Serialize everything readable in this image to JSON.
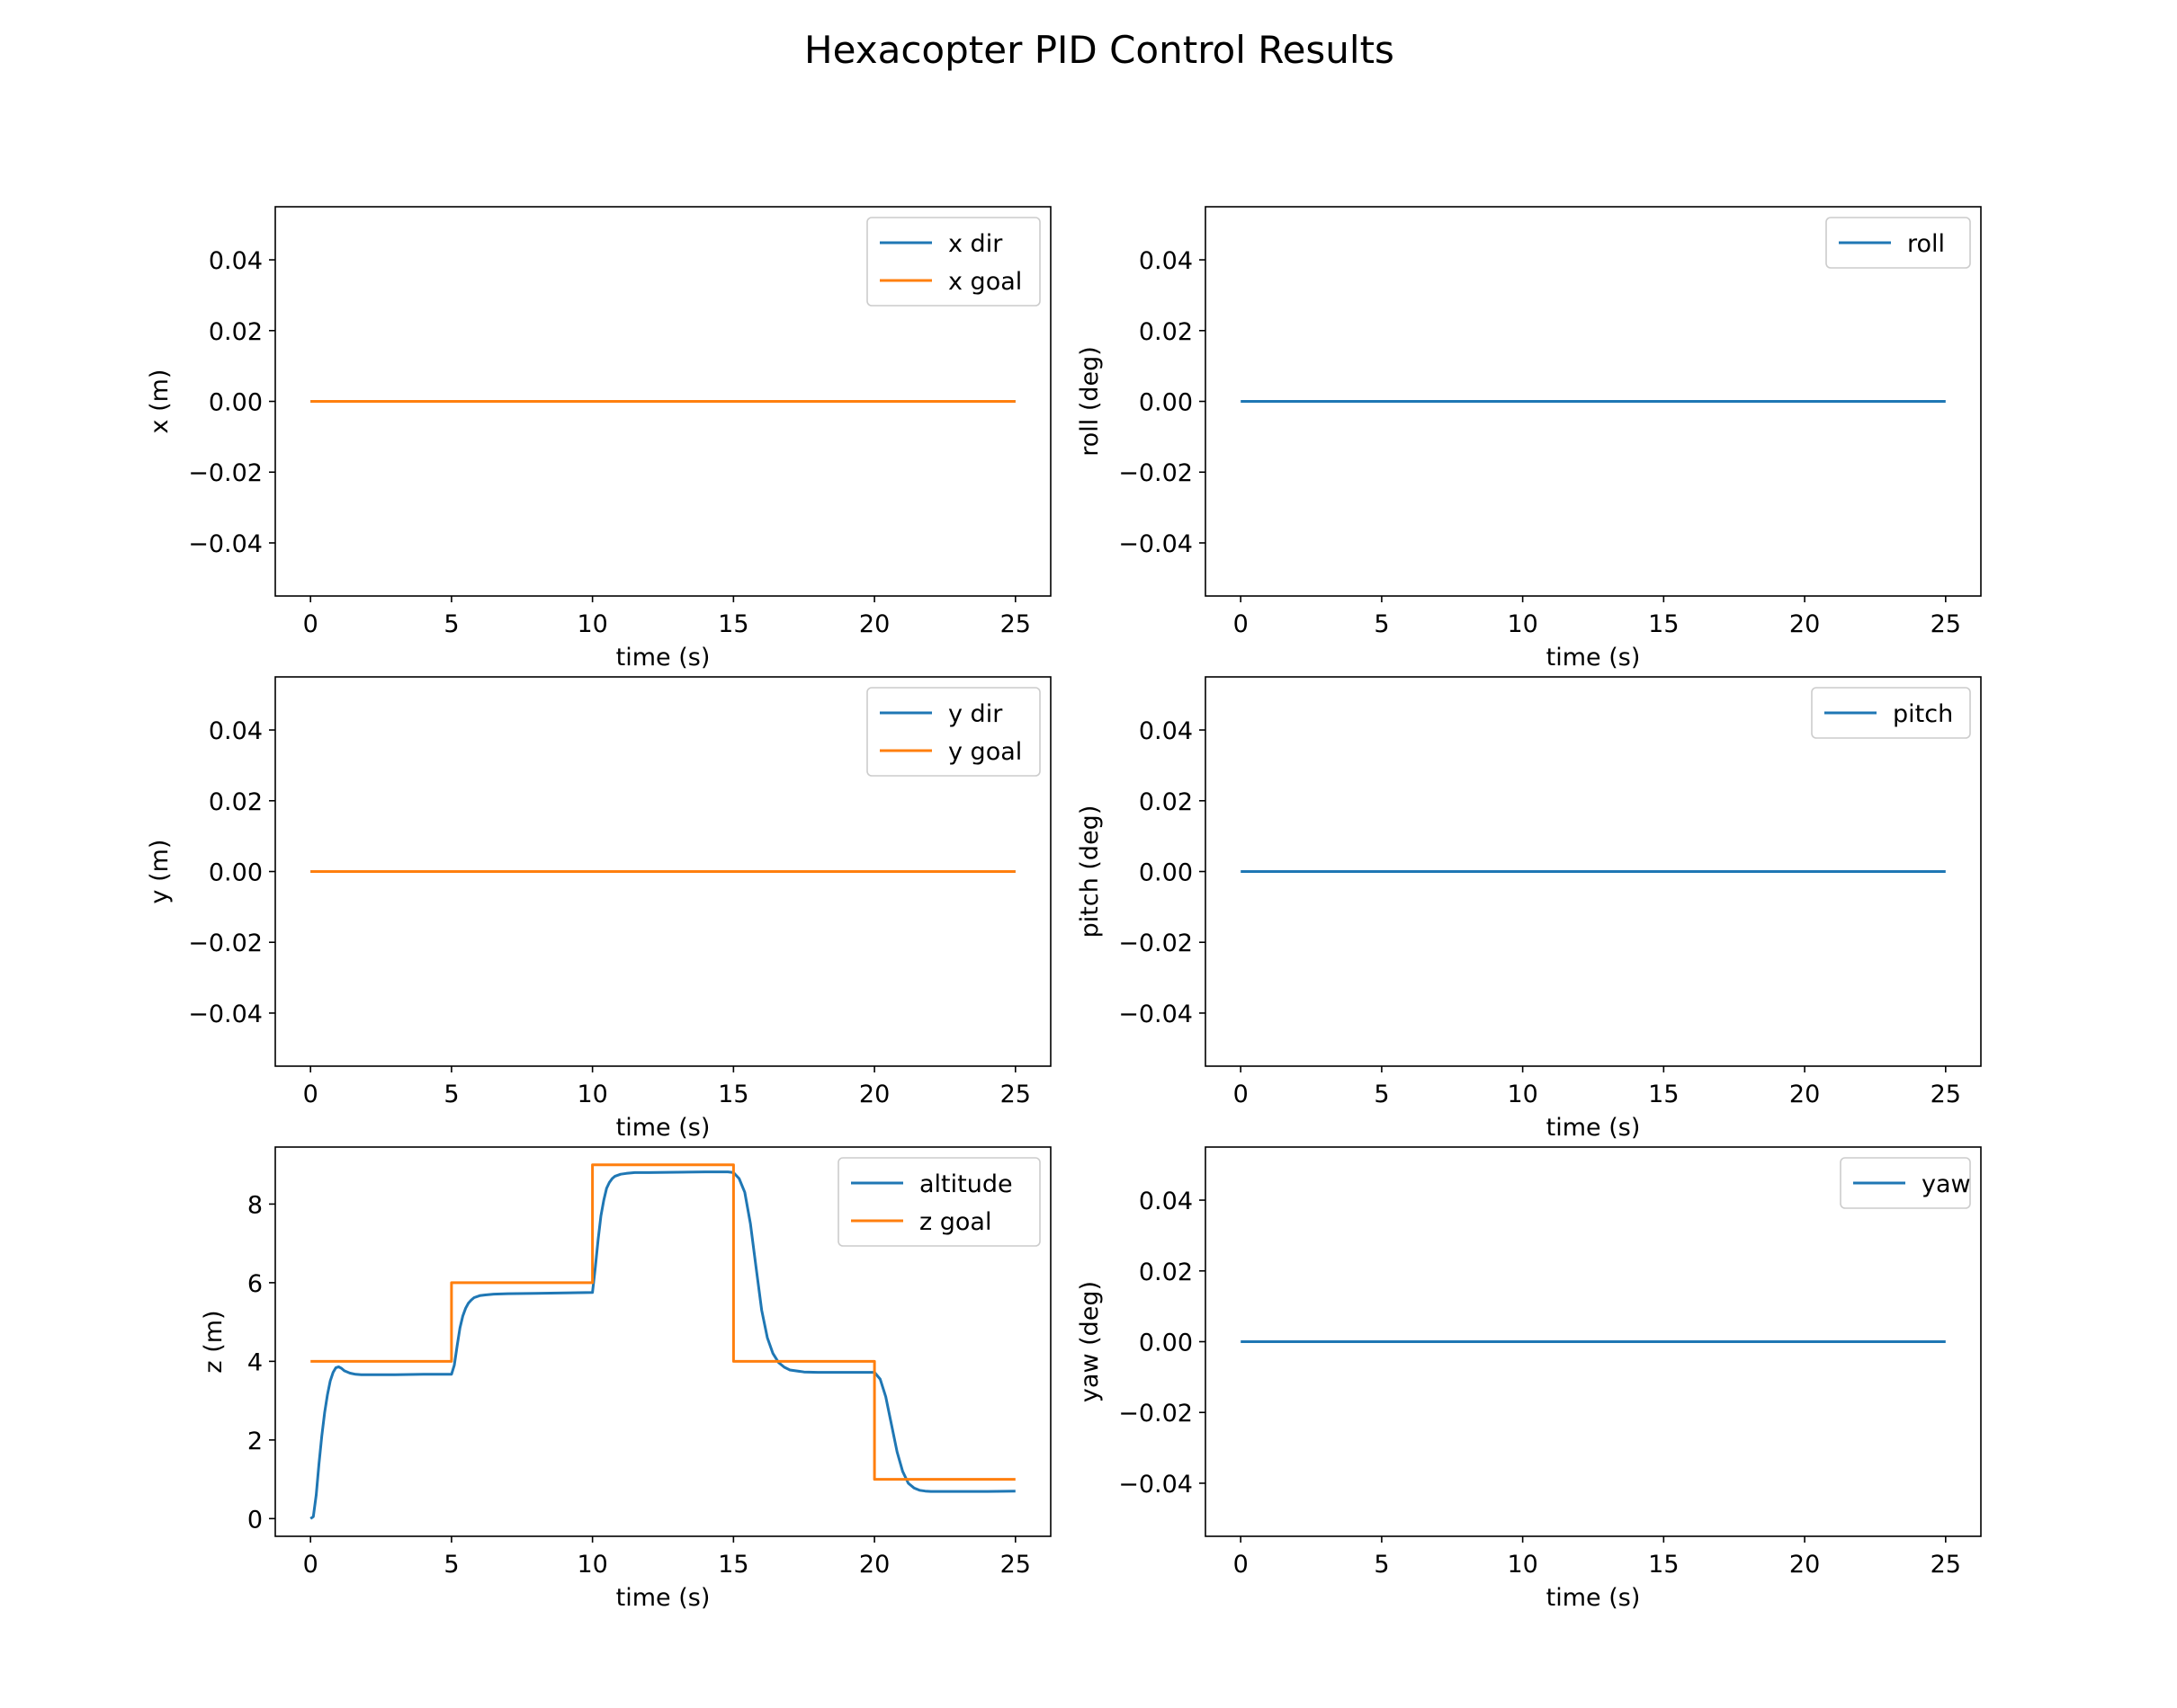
{
  "figure": {
    "title": "Hexacopter PID Control Results"
  },
  "colors": {
    "series_blue": "#1f77b4",
    "series_orange": "#ff7f0e",
    "axes": "#000000",
    "legend_border": "#cccccc"
  },
  "chart_data": [
    {
      "type": "line",
      "panel": "top-left",
      "xlabel": "time (s)",
      "ylabel": "x (m)",
      "xlim": [
        -1.25,
        26.25
      ],
      "ylim": [
        -0.055,
        0.055
      ],
      "xticks": [
        0,
        5,
        10,
        15,
        20,
        25
      ],
      "xtick_labels": [
        "0",
        "5",
        "10",
        "15",
        "20",
        "25"
      ],
      "yticks": [
        0.04,
        0.02,
        0.0,
        -0.02,
        -0.04
      ],
      "ytick_labels": [
        "0.04",
        "0.02",
        "0.00",
        "−0.02",
        "−0.04"
      ],
      "legend": "top-right",
      "series": [
        {
          "name": "x dir",
          "color": "#1f77b4",
          "x": [
            0,
            25
          ],
          "y": [
            0,
            0
          ]
        },
        {
          "name": "x goal",
          "color": "#ff7f0e",
          "x": [
            0,
            25
          ],
          "y": [
            0,
            0
          ]
        }
      ]
    },
    {
      "type": "line",
      "panel": "top-right",
      "xlabel": "time (s)",
      "ylabel": "roll (deg)",
      "xlim": [
        -1.25,
        26.25
      ],
      "ylim": [
        -0.055,
        0.055
      ],
      "xticks": [
        0,
        5,
        10,
        15,
        20,
        25
      ],
      "xtick_labels": [
        "0",
        "5",
        "10",
        "15",
        "20",
        "25"
      ],
      "yticks": [
        0.04,
        0.02,
        0.0,
        -0.02,
        -0.04
      ],
      "ytick_labels": [
        "0.04",
        "0.02",
        "0.00",
        "−0.02",
        "−0.04"
      ],
      "legend": "top-right",
      "series": [
        {
          "name": "roll",
          "color": "#1f77b4",
          "x": [
            0,
            25
          ],
          "y": [
            0,
            0
          ]
        }
      ]
    },
    {
      "type": "line",
      "panel": "middle-left",
      "xlabel": "time (s)",
      "ylabel": "y (m)",
      "xlim": [
        -1.25,
        26.25
      ],
      "ylim": [
        -0.055,
        0.055
      ],
      "xticks": [
        0,
        5,
        10,
        15,
        20,
        25
      ],
      "xtick_labels": [
        "0",
        "5",
        "10",
        "15",
        "20",
        "25"
      ],
      "yticks": [
        0.04,
        0.02,
        0.0,
        -0.02,
        -0.04
      ],
      "ytick_labels": [
        "0.04",
        "0.02",
        "0.00",
        "−0.02",
        "−0.04"
      ],
      "legend": "top-right",
      "series": [
        {
          "name": "y dir",
          "color": "#1f77b4",
          "x": [
            0,
            25
          ],
          "y": [
            0,
            0
          ]
        },
        {
          "name": "y goal",
          "color": "#ff7f0e",
          "x": [
            0,
            25
          ],
          "y": [
            0,
            0
          ]
        }
      ]
    },
    {
      "type": "line",
      "panel": "middle-right",
      "xlabel": "time (s)",
      "ylabel": "pitch (deg)",
      "xlim": [
        -1.25,
        26.25
      ],
      "ylim": [
        -0.055,
        0.055
      ],
      "xticks": [
        0,
        5,
        10,
        15,
        20,
        25
      ],
      "xtick_labels": [
        "0",
        "5",
        "10",
        "15",
        "20",
        "25"
      ],
      "yticks": [
        0.04,
        0.02,
        0.0,
        -0.02,
        -0.04
      ],
      "ytick_labels": [
        "0.04",
        "0.02",
        "0.00",
        "−0.02",
        "−0.04"
      ],
      "legend": "top-right",
      "series": [
        {
          "name": "pitch",
          "color": "#1f77b4",
          "x": [
            0,
            25
          ],
          "y": [
            0,
            0
          ]
        }
      ]
    },
    {
      "type": "line",
      "panel": "bottom-left",
      "xlabel": "time (s)",
      "ylabel": "z (m)",
      "xlim": [
        -1.25,
        26.25
      ],
      "ylim": [
        -0.45,
        9.45
      ],
      "xticks": [
        0,
        5,
        10,
        15,
        20,
        25
      ],
      "xtick_labels": [
        "0",
        "5",
        "10",
        "15",
        "20",
        "25"
      ],
      "yticks": [
        8,
        6,
        4,
        2,
        0
      ],
      "ytick_labels": [
        "8",
        "6",
        "4",
        "2",
        "0"
      ],
      "legend": "top-right",
      "series": [
        {
          "name": "altitude",
          "color": "#1f77b4",
          "x": [
            0,
            0.1,
            0.2,
            0.3,
            0.4,
            0.5,
            0.6,
            0.7,
            0.8,
            0.9,
            1.0,
            1.1,
            1.2,
            1.4,
            1.6,
            1.8,
            2.0,
            2.5,
            3.0,
            4.0,
            5.0,
            5.1,
            5.2,
            5.3,
            5.4,
            5.5,
            5.6,
            5.7,
            5.8,
            6.0,
            6.2,
            6.5,
            7.0,
            8.0,
            9.0,
            10.0,
            10.1,
            10.2,
            10.3,
            10.4,
            10.5,
            10.6,
            10.7,
            10.8,
            11.0,
            11.2,
            11.5,
            12.0,
            13.0,
            14.0,
            14.8,
            15.0,
            15.2,
            15.4,
            15.6,
            15.8,
            16.0,
            16.2,
            16.4,
            16.6,
            16.8,
            17.0,
            17.5,
            18.0,
            19.0,
            20.0,
            20.2,
            20.4,
            20.6,
            20.8,
            21.0,
            21.2,
            21.4,
            21.6,
            21.8,
            22.0,
            22.5,
            23.0,
            24.0,
            25.0
          ],
          "y": [
            0.0,
            0.05,
            0.6,
            1.4,
            2.1,
            2.7,
            3.15,
            3.5,
            3.72,
            3.84,
            3.86,
            3.82,
            3.76,
            3.7,
            3.67,
            3.66,
            3.66,
            3.66,
            3.66,
            3.67,
            3.67,
            3.9,
            4.4,
            4.85,
            5.15,
            5.35,
            5.48,
            5.56,
            5.62,
            5.67,
            5.69,
            5.71,
            5.72,
            5.73,
            5.74,
            5.75,
            6.4,
            7.1,
            7.7,
            8.1,
            8.4,
            8.55,
            8.65,
            8.71,
            8.76,
            8.78,
            8.8,
            8.8,
            8.81,
            8.82,
            8.82,
            8.8,
            8.65,
            8.3,
            7.5,
            6.4,
            5.3,
            4.6,
            4.2,
            3.97,
            3.85,
            3.78,
            3.73,
            3.72,
            3.72,
            3.72,
            3.55,
            3.1,
            2.4,
            1.7,
            1.2,
            0.9,
            0.78,
            0.72,
            0.7,
            0.69,
            0.69,
            0.69,
            0.69,
            0.7
          ]
        },
        {
          "name": "z goal",
          "color": "#ff7f0e",
          "x": [
            0,
            5,
            5,
            10,
            10,
            15,
            15,
            20,
            20,
            25
          ],
          "y": [
            4,
            4,
            6,
            6,
            9,
            9,
            4,
            4,
            1,
            1
          ]
        }
      ]
    },
    {
      "type": "line",
      "panel": "bottom-right",
      "xlabel": "time (s)",
      "ylabel": "yaw (deg)",
      "xlim": [
        -1.25,
        26.25
      ],
      "ylim": [
        -0.055,
        0.055
      ],
      "xticks": [
        0,
        5,
        10,
        15,
        20,
        25
      ],
      "xtick_labels": [
        "0",
        "5",
        "10",
        "15",
        "20",
        "25"
      ],
      "yticks": [
        0.04,
        0.02,
        0.0,
        -0.02,
        -0.04
      ],
      "ytick_labels": [
        "0.04",
        "0.02",
        "0.00",
        "−0.02",
        "−0.04"
      ],
      "legend": "top-right",
      "series": [
        {
          "name": "yaw",
          "color": "#1f77b4",
          "x": [
            0,
            25
          ],
          "y": [
            0,
            0
          ]
        }
      ]
    }
  ]
}
